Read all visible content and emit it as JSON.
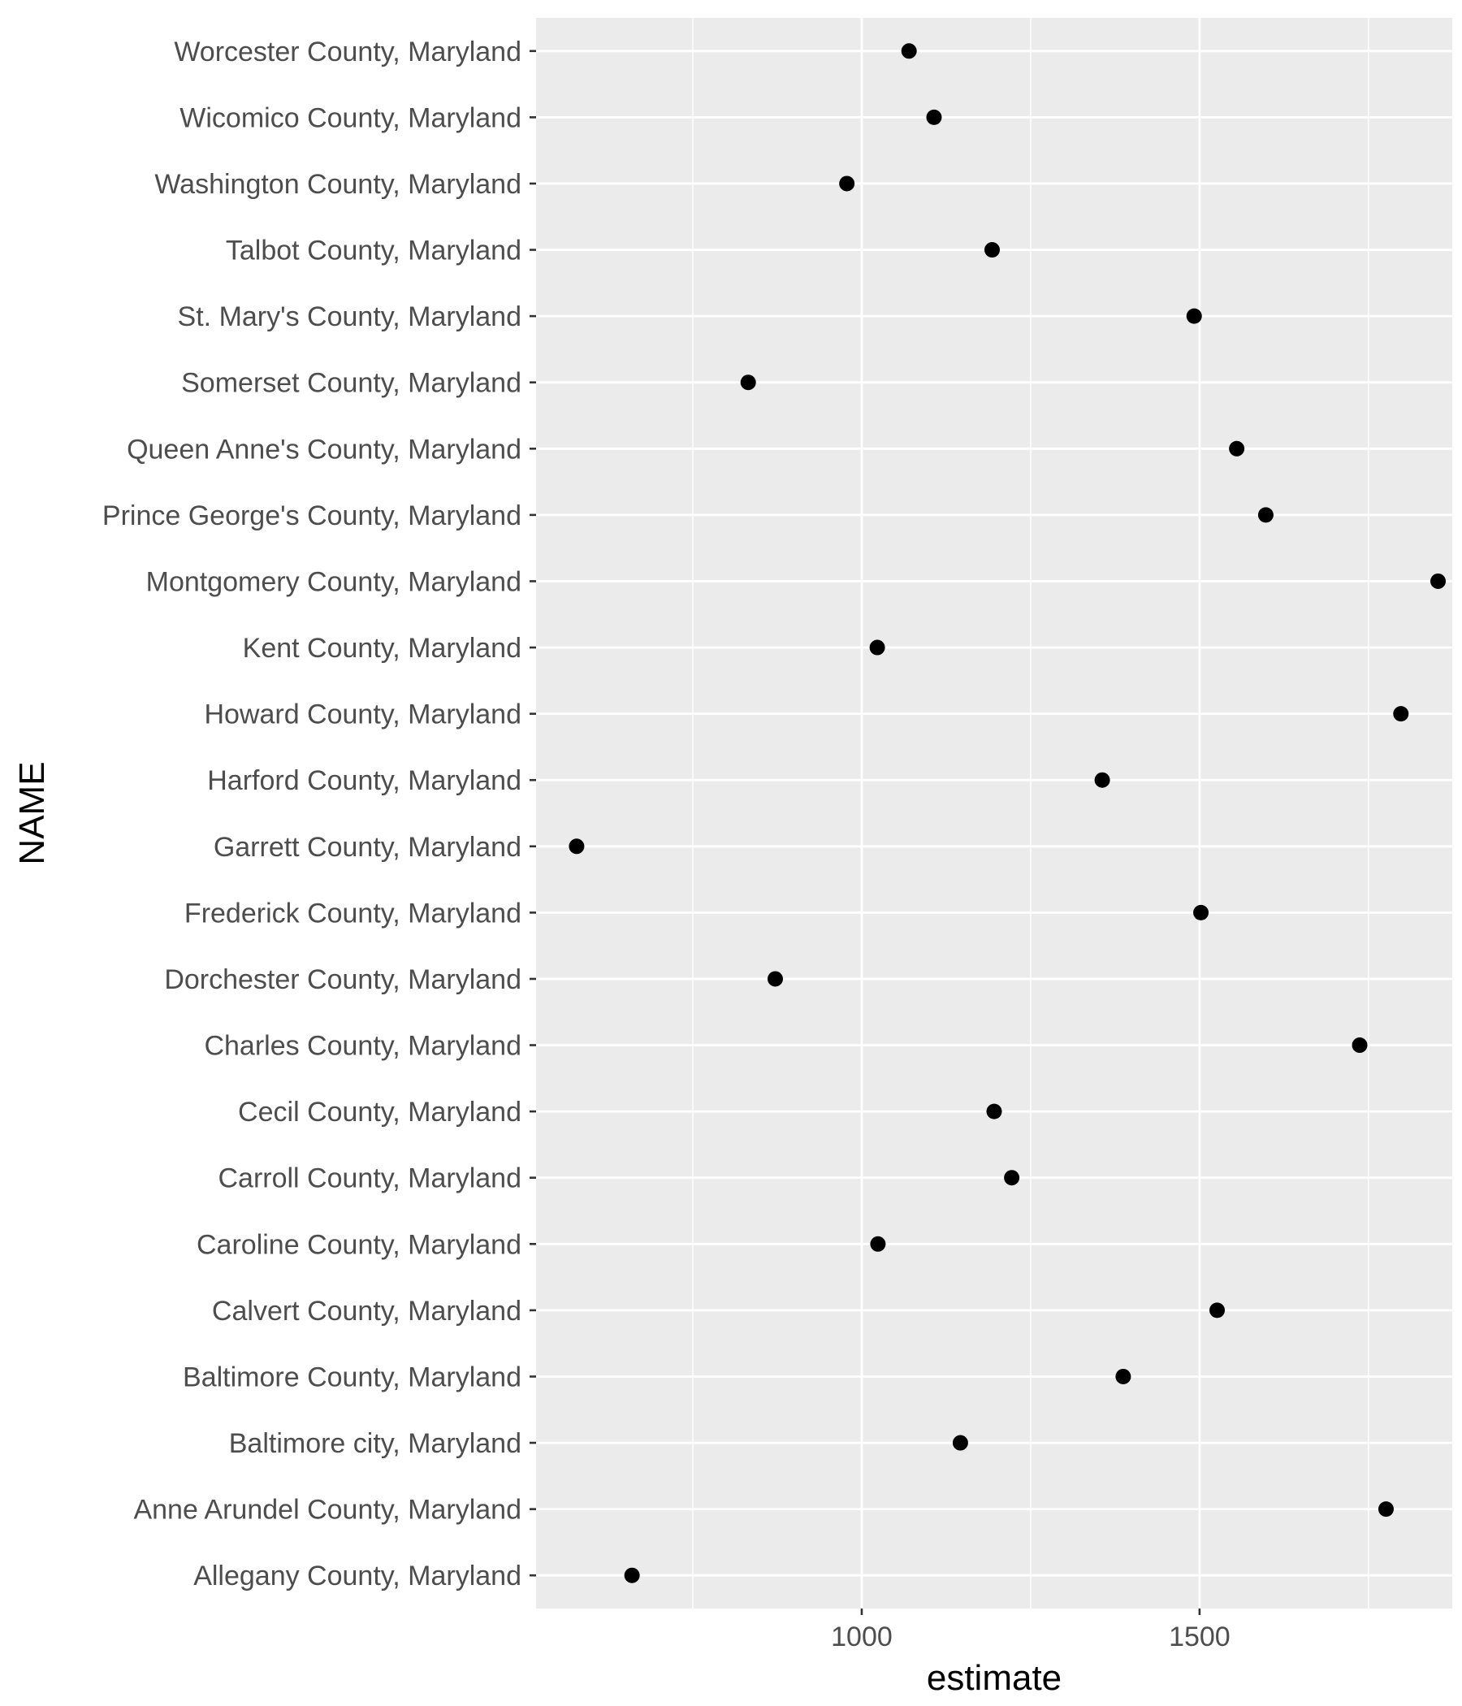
{
  "chart_data": {
    "type": "scatter",
    "xlabel": "estimate",
    "ylabel": "NAME",
    "xlim": [
      518,
      1874
    ],
    "x_ticks": [
      1000,
      1500
    ],
    "x_tick_labels": [
      "1000",
      "1500"
    ],
    "grid": true,
    "colors": {
      "panel": "#ebebeb",
      "grid": "#ffffff",
      "point": "#000000",
      "tick_text": "#4d4d4d",
      "tick": "#333333"
    },
    "categories": [
      "Allegany County, Maryland",
      "Anne Arundel County, Maryland",
      "Baltimore city, Maryland",
      "Baltimore County, Maryland",
      "Calvert County, Maryland",
      "Caroline County, Maryland",
      "Carroll County, Maryland",
      "Cecil County, Maryland",
      "Charles County, Maryland",
      "Dorchester County, Maryland",
      "Frederick County, Maryland",
      "Garrett County, Maryland",
      "Harford County, Maryland",
      "Howard County, Maryland",
      "Kent County, Maryland",
      "Montgomery County, Maryland",
      "Prince George's County, Maryland",
      "Queen Anne's County, Maryland",
      "Somerset County, Maryland",
      "St. Mary's County, Maryland",
      "Talbot County, Maryland",
      "Washington County, Maryland",
      "Wicomico County, Maryland",
      "Worcester County, Maryland"
    ],
    "values": [
      660,
      1776,
      1146,
      1387,
      1526,
      1024,
      1222,
      1196,
      1737,
      872,
      1502,
      578,
      1356,
      1798,
      1023,
      1853,
      1598,
      1555,
      832,
      1492,
      1193,
      978,
      1107,
      1070
    ]
  }
}
